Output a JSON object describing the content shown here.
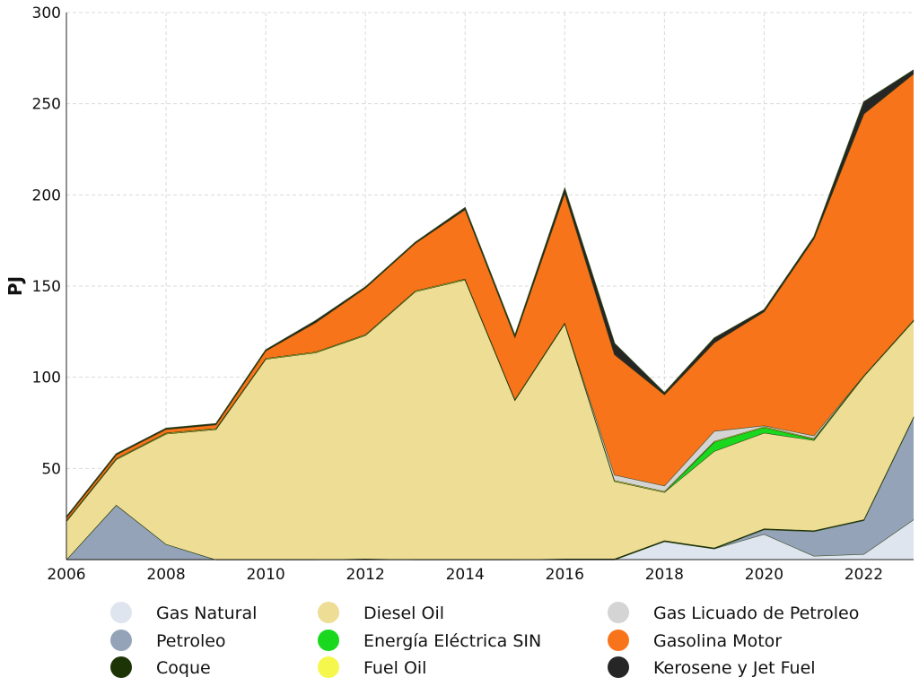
{
  "chart_data": {
    "type": "area",
    "stacked": true,
    "ylabel": "PJ",
    "xlabel": "",
    "title": "",
    "x": [
      2006,
      2007,
      2008,
      2009,
      2010,
      2011,
      2012,
      2013,
      2014,
      2015,
      2016,
      2017,
      2018,
      2019,
      2020,
      2021,
      2022,
      2023
    ],
    "xlim": [
      2006,
      2023
    ],
    "ylim": [
      0,
      300
    ],
    "xticks": [
      "2006",
      "2008",
      "2010",
      "2012",
      "2014",
      "2016",
      "2018",
      "2020",
      "2022"
    ],
    "yticks": [
      "50",
      "100",
      "150",
      "200",
      "250",
      "300"
    ],
    "grid": true,
    "legend_position": "bottom",
    "series": [
      {
        "name": "Gas Natural",
        "color": "#dfe5ef",
        "values": [
          0,
          0,
          0,
          0,
          0,
          0,
          0,
          0,
          0,
          0,
          0,
          0,
          10,
          6,
          14,
          2,
          3,
          22
        ]
      },
      {
        "name": "Petroleo",
        "color": "#95a3b8",
        "values": [
          0,
          30,
          8.5,
          0,
          0,
          0,
          0,
          0,
          0,
          0,
          0,
          0,
          0,
          0,
          2.5,
          13.5,
          18.5,
          56
        ]
      },
      {
        "name": "Coque",
        "color": "#1d3407",
        "values": [
          0,
          0,
          0,
          0,
          0,
          0,
          0.5,
          0,
          0,
          0,
          0.5,
          0.5,
          0.5,
          0.5,
          0.5,
          0.5,
          0.5,
          0.5
        ]
      },
      {
        "name": "Diesel Oil",
        "color": "#eedd95",
        "values": [
          21,
          25,
          60.5,
          71.5,
          110,
          113.5,
          122.5,
          147,
          153.5,
          87.5,
          129,
          42.5,
          26.5,
          53,
          52.5,
          49.5,
          78.5,
          52.5
        ]
      },
      {
        "name": "Energía Eléctrica SIN",
        "color": "#19d81e",
        "values": [
          0,
          0,
          0,
          0,
          0,
          0,
          0,
          0,
          0,
          0,
          0,
          0,
          0,
          5,
          3,
          0.5,
          0,
          0
        ]
      },
      {
        "name": "Fuel Oil",
        "color": "#f5f74c",
        "values": [
          0.5,
          0.5,
          0.5,
          0.5,
          0.5,
          0.5,
          0.5,
          0.5,
          0.5,
          0.5,
          0.5,
          0.5,
          0.5,
          0.5,
          0.5,
          0.5,
          0.5,
          0.5
        ]
      },
      {
        "name": "Gas Licuado de Petroleo",
        "color": "#d4d4d4",
        "values": [
          0,
          0,
          0,
          0,
          0,
          0,
          0,
          0,
          0,
          0,
          0,
          3,
          3,
          5.5,
          0.5,
          1.5,
          0,
          0
        ]
      },
      {
        "name": "Gasolina Motor",
        "color": "#f8741a",
        "values": [
          1.5,
          2,
          2,
          2,
          4,
          16,
          25.5,
          26,
          38,
          34,
          71,
          66,
          50,
          48.5,
          62.5,
          108,
          143.5,
          135
        ]
      },
      {
        "name": "Kerosene y Jet Fuel",
        "color": "#262626",
        "values": [
          0.5,
          0.5,
          0.5,
          0.5,
          0.5,
          1,
          0.5,
          0.5,
          1,
          1,
          2.5,
          6,
          1,
          2.5,
          1,
          1,
          6.5,
          2
        ]
      }
    ]
  }
}
